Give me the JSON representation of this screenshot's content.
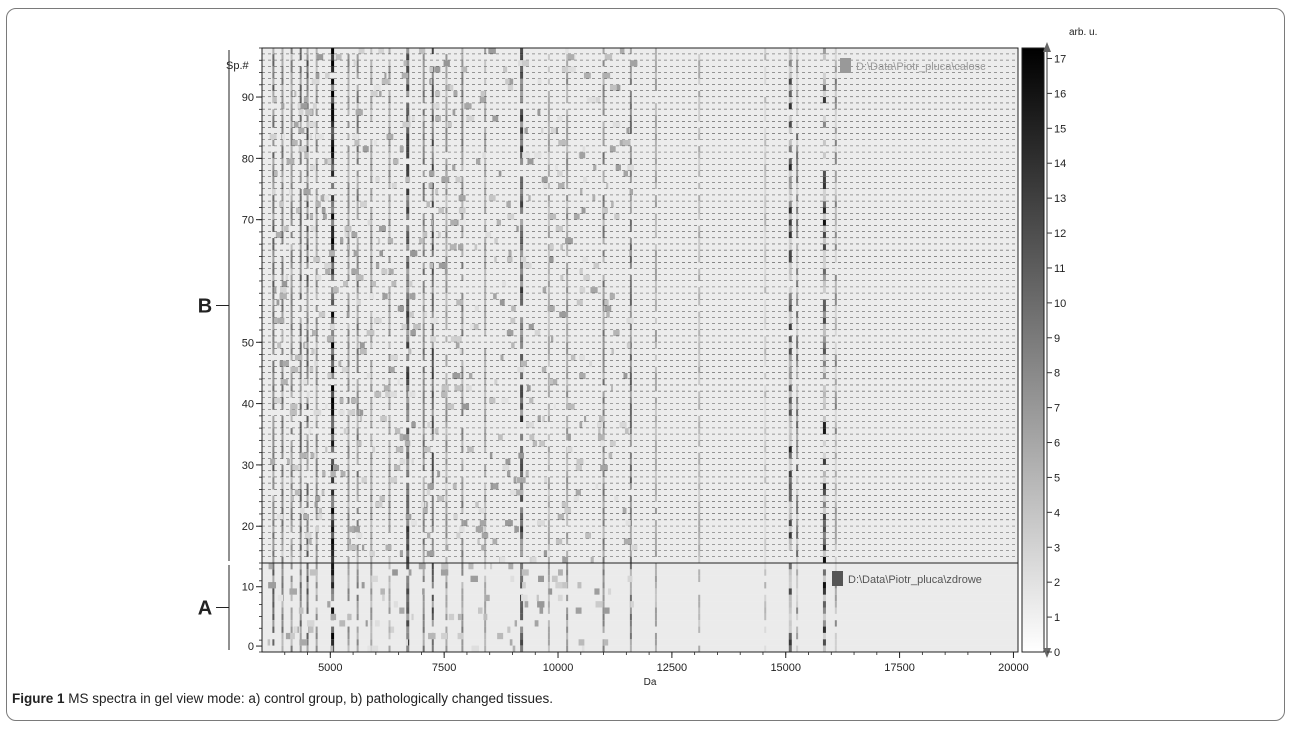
{
  "figure": {
    "caption_label": "Figure 1",
    "caption_text": "MS spectra in gel view mode: a) control group, b) pathologically changed tissues",
    "caption_end": "."
  },
  "chart_data": {
    "type": "heatmap",
    "title": "",
    "xlabel": "Da",
    "ylabel": "Sp.#",
    "xlim": [
      3500,
      20100
    ],
    "x_ticks": [
      5000,
      7500,
      10000,
      12500,
      15000,
      17500,
      20000
    ],
    "colorbar": {
      "label": "arb. u.",
      "range": [
        0,
        17.3
      ],
      "ticks": [
        0,
        1,
        2,
        3,
        4,
        5,
        6,
        7,
        8,
        9,
        10,
        11,
        12,
        13,
        14,
        15,
        16,
        17
      ]
    },
    "panels": [
      {
        "group": "A",
        "source_label": "D:\\Data\\Piotr_pluca\\zdrowe",
        "swatch_color": "#555555",
        "ylim": [
          -1,
          14
        ],
        "y_ticks": [
          0,
          10
        ],
        "rows": 14,
        "dashed_rows": false
      },
      {
        "group": "B",
        "source_label": "D:\\Data\\Piotr_pluca\\calosc",
        "swatch_color": "#999999",
        "ylim": [
          14,
          98
        ],
        "y_ticks": [
          20,
          30,
          40,
          50,
          70,
          80,
          90
        ],
        "rows": 84,
        "dashed_rows": true
      }
    ],
    "peaks": [
      {
        "mz": 3750,
        "intensity": 0.6
      },
      {
        "mz": 3950,
        "intensity": 0.5
      },
      {
        "mz": 4150,
        "intensity": 0.45
      },
      {
        "mz": 4350,
        "intensity": 0.55
      },
      {
        "mz": 4500,
        "intensity": 0.65
      },
      {
        "mz": 4700,
        "intensity": 0.4
      },
      {
        "mz": 5050,
        "intensity": 1.0
      },
      {
        "mz": 5400,
        "intensity": 0.4
      },
      {
        "mz": 5600,
        "intensity": 0.5
      },
      {
        "mz": 5900,
        "intensity": 0.35
      },
      {
        "mz": 6300,
        "intensity": 0.35
      },
      {
        "mz": 6700,
        "intensity": 0.75
      },
      {
        "mz": 7050,
        "intensity": 0.5
      },
      {
        "mz": 7250,
        "intensity": 0.7
      },
      {
        "mz": 7550,
        "intensity": 0.4
      },
      {
        "mz": 7900,
        "intensity": 0.45
      },
      {
        "mz": 8400,
        "intensity": 0.3
      },
      {
        "mz": 9200,
        "intensity": 0.75
      },
      {
        "mz": 9800,
        "intensity": 0.3
      },
      {
        "mz": 10200,
        "intensity": 0.4
      },
      {
        "mz": 11000,
        "intensity": 0.5
      },
      {
        "mz": 11600,
        "intensity": 0.55
      },
      {
        "mz": 12150,
        "intensity": 0.3
      },
      {
        "mz": 13100,
        "intensity": 0.25
      },
      {
        "mz": 14550,
        "intensity": 0.2
      },
      {
        "mz": 15100,
        "intensity": 0.8
      },
      {
        "mz": 15250,
        "intensity": 0.5
      },
      {
        "mz": 15850,
        "intensity": 0.9
      },
      {
        "mz": 16100,
        "intensity": 0.45
      }
    ]
  }
}
